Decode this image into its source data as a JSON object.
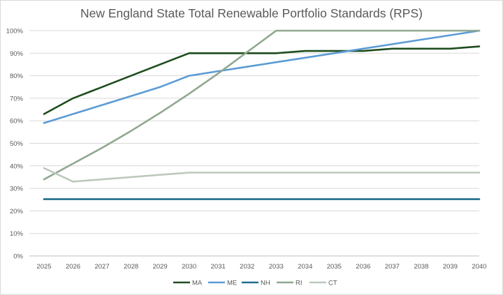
{
  "chart_data": {
    "type": "line",
    "title": "New England State Total Renewable Portfolio Standards (RPS)",
    "xlabel": "",
    "ylabel": "",
    "x": [
      "2025",
      "2026",
      "2027",
      "2028",
      "2029",
      "2030",
      "2031",
      "2032",
      "2033",
      "2034",
      "2035",
      "2036",
      "2037",
      "2038",
      "2039",
      "2040"
    ],
    "ylim": [
      0,
      100
    ],
    "yticks": [
      "0%",
      "10%",
      "20%",
      "30%",
      "40%",
      "50%",
      "60%",
      "70%",
      "80%",
      "90%",
      "100%"
    ],
    "grid": true,
    "legend_position": "bottom",
    "series": [
      {
        "name": "MA",
        "color": "#1e4d1e",
        "values": [
          63,
          70,
          75,
          80,
          85,
          90,
          90,
          90,
          90,
          91,
          91,
          91,
          92,
          92,
          92,
          93
        ]
      },
      {
        "name": "ME",
        "color": "#5b9bd5",
        "values": [
          59,
          63,
          67,
          71,
          75,
          80,
          82,
          84,
          86,
          88,
          90,
          92,
          94,
          96,
          98,
          100
        ]
      },
      {
        "name": "NH",
        "color": "#1f6f8b",
        "values": [
          25.2,
          25.2,
          25.2,
          25.2,
          25.2,
          25.2,
          25.2,
          25.2,
          25.2,
          25.2,
          25.2,
          25.2,
          25.2,
          25.2,
          25.2,
          25.2
        ]
      },
      {
        "name": "RI",
        "color": "#8fa88f",
        "values": [
          34,
          41,
          48,
          55.5,
          63.5,
          72,
          81,
          90.5,
          100,
          100,
          100,
          100,
          100,
          100,
          100,
          100
        ]
      },
      {
        "name": "CT",
        "color": "#bcc9bc",
        "values": [
          39,
          33,
          34,
          35,
          36,
          37,
          37,
          37,
          37,
          37,
          37,
          37,
          37,
          37,
          37,
          37
        ]
      }
    ]
  }
}
